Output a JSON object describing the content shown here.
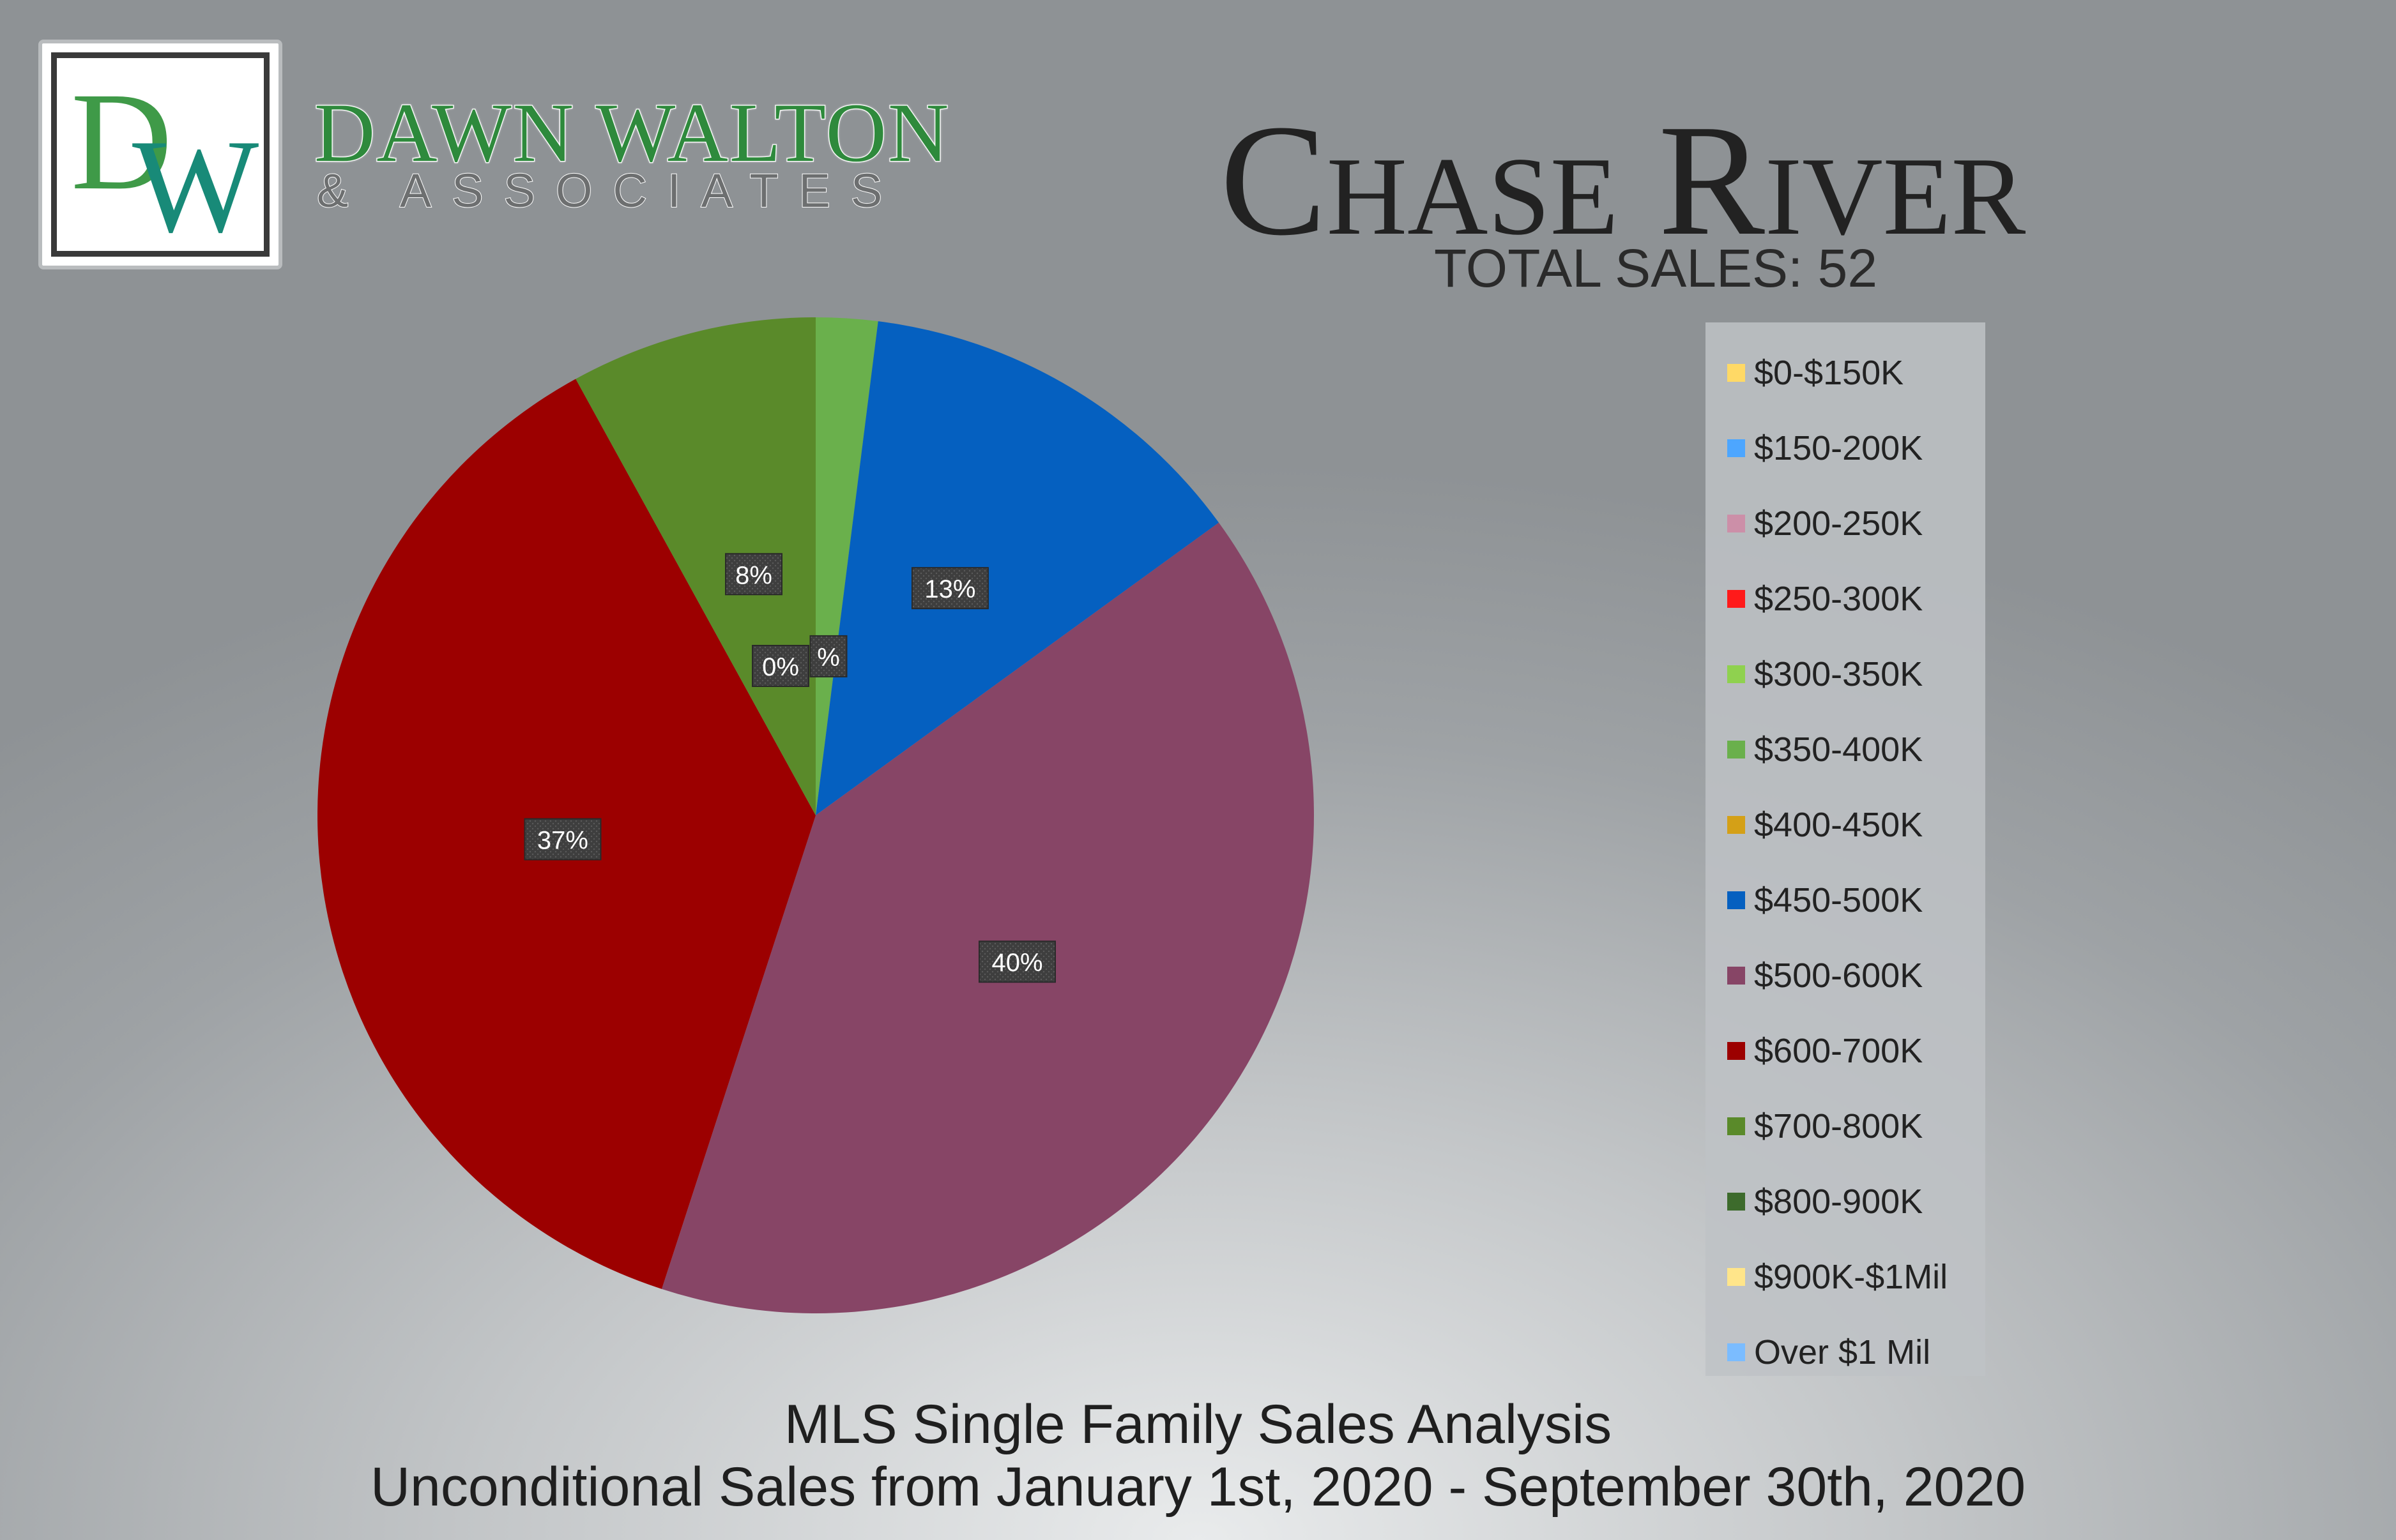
{
  "brand": {
    "logo_letters": [
      "D",
      "W"
    ],
    "name": "DAWN WALTON",
    "tagline": "& ASSOCIATES",
    "colors": {
      "d": "#3f9a48",
      "w": "#188a78",
      "name": "#2e8a3c"
    }
  },
  "chart_data": {
    "type": "pie",
    "title": "Chase River",
    "subtitle": "TOTAL SALES: 52",
    "legend_position": "right",
    "categories": [
      "$0-$150K",
      "$150-200K",
      "$200-250K",
      "$250-300K",
      "$300-350K",
      "$350-400K",
      "$400-450K",
      "$450-500K",
      "$500-600K",
      "$600-700K",
      "$700-800K",
      "$800-900K",
      "$900K-$1Mil",
      "Over $1 Mil"
    ],
    "values": [
      0,
      0,
      0,
      0,
      0,
      2,
      0,
      13,
      40,
      37,
      8,
      0,
      0,
      0
    ],
    "colors": [
      "#ffd966",
      "#4da6ff",
      "#cc8fa8",
      "#ff1a1a",
      "#8fd14f",
      "#6ab04c",
      "#d4a017",
      "#0560c0",
      "#874566",
      "#9c0000",
      "#5a8a2a",
      "#3d6b2c",
      "#ffe58a",
      "#7bbcff"
    ],
    "data_labels": [
      {
        "index": 10,
        "text": "8%"
      },
      {
        "index": 4,
        "text": "0%"
      },
      {
        "index": 5,
        "text": "%"
      },
      {
        "index": 7,
        "text": "13%"
      },
      {
        "index": 9,
        "text": "37%"
      },
      {
        "index": 8,
        "text": "40%"
      }
    ]
  },
  "footer": {
    "line1": "MLS Single Family Sales Analysis",
    "line2": "Unconditional Sales from January 1st, 2020 - September 30th, 2020"
  }
}
